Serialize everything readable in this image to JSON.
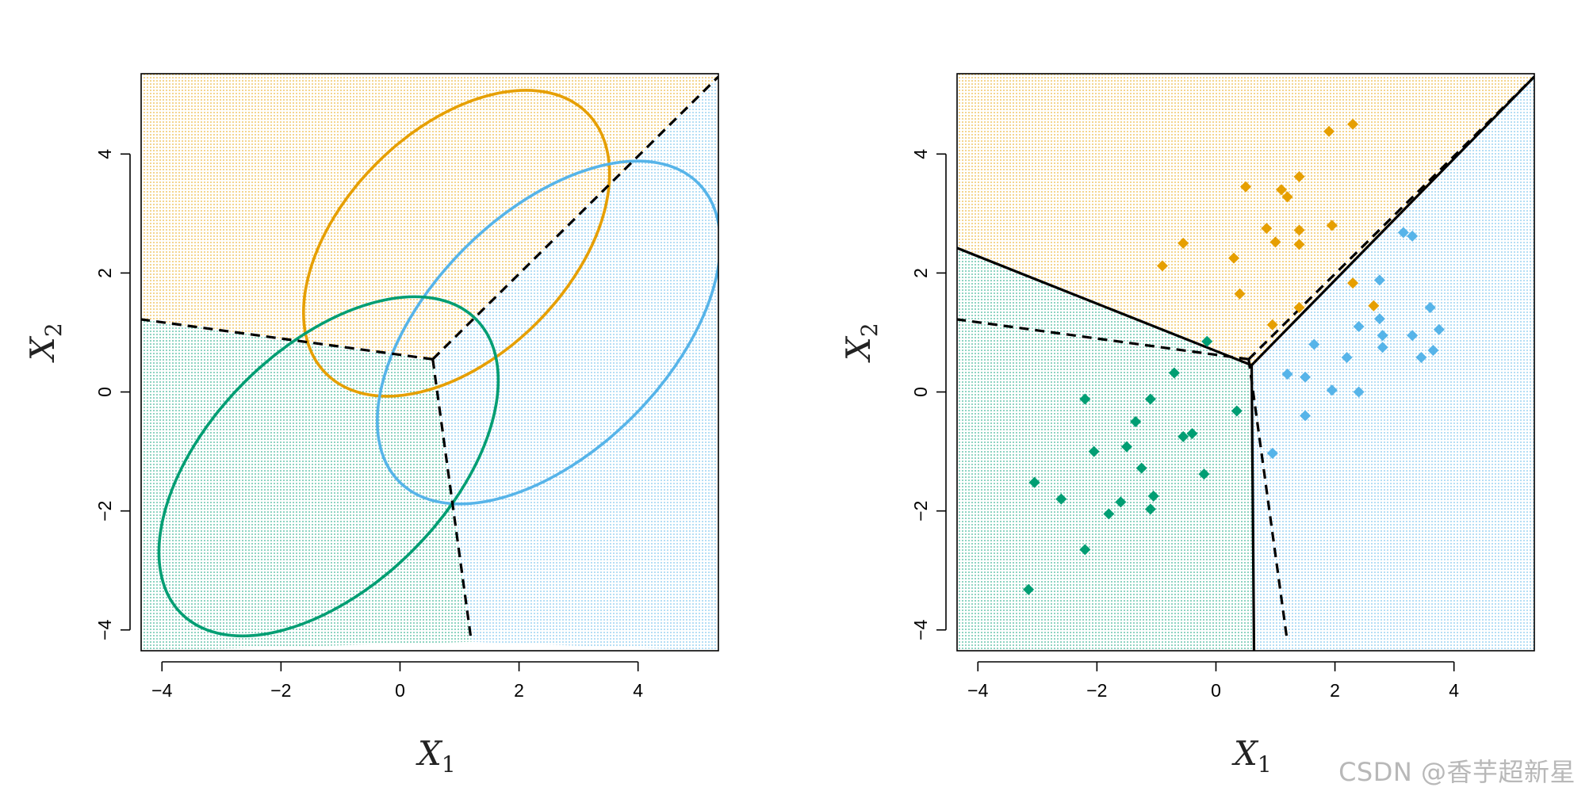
{
  "chart_data": [
    {
      "type": "scatter",
      "panel": "left",
      "title": "",
      "xlabel": "X1",
      "ylabel": "X2",
      "xlim": [
        -4.35,
        5.35
      ],
      "ylim": [
        -4.35,
        5.35
      ],
      "xticks": [
        -4,
        -2,
        0,
        2,
        4
      ],
      "yticks": [
        -4,
        -2,
        0,
        2,
        4
      ],
      "grid": false,
      "regions": [
        "orange",
        "blue",
        "green"
      ],
      "ellipses": [
        {
          "color": "orange",
          "center": [
            0.95,
            2.5
          ],
          "semi_axes": [
            3.1,
            1.9
          ],
          "angle_deg": 45
        },
        {
          "color": "blue",
          "center": [
            2.5,
            1.0
          ],
          "semi_axes": [
            3.55,
            2.0
          ],
          "angle_deg": 45
        },
        {
          "color": "green",
          "center": [
            -1.2,
            -1.25
          ],
          "semi_axes": [
            3.5,
            2.0
          ],
          "angle_deg": 45
        }
      ],
      "boundaries": [
        {
          "style": "dashed",
          "points": [
            [
              0.55,
              0.55
            ],
            [
              -4.35,
              1.22
            ]
          ]
        },
        {
          "style": "dashed",
          "points": [
            [
              0.55,
              0.55
            ],
            [
              5.35,
              5.3
            ]
          ]
        },
        {
          "style": "dashed",
          "points": [
            [
              0.55,
              0.55
            ],
            [
              1.2,
              -4.2
            ]
          ]
        }
      ]
    },
    {
      "type": "scatter",
      "panel": "right",
      "title": "",
      "xlabel": "X1",
      "ylabel": "X2",
      "xlim": [
        -4.35,
        5.35
      ],
      "ylim": [
        -4.35,
        5.35
      ],
      "xticks": [
        -4,
        -2,
        0,
        2,
        4
      ],
      "yticks": [
        -4,
        -2,
        0,
        2,
        4
      ],
      "grid": false,
      "regions": [
        "orange",
        "blue",
        "green"
      ],
      "boundaries": [
        {
          "style": "dashed",
          "points": [
            [
              0.55,
              0.55
            ],
            [
              -4.35,
              1.22
            ]
          ]
        },
        {
          "style": "dashed",
          "points": [
            [
              0.55,
              0.55
            ],
            [
              5.35,
              5.3
            ]
          ]
        },
        {
          "style": "dashed",
          "points": [
            [
              0.55,
              0.55
            ],
            [
              1.2,
              -4.2
            ]
          ]
        },
        {
          "style": "solid",
          "points": [
            [
              0.6,
              0.45
            ],
            [
              -4.35,
              2.42
            ]
          ]
        },
        {
          "style": "solid",
          "points": [
            [
              0.6,
              0.45
            ],
            [
              5.35,
              5.3
            ]
          ]
        },
        {
          "style": "solid",
          "points": [
            [
              0.6,
              0.45
            ],
            [
              0.64,
              -4.35
            ]
          ]
        }
      ],
      "series": [
        {
          "color": "orange",
          "points": [
            [
              1.9,
              4.38
            ],
            [
              2.3,
              4.5
            ],
            [
              0.5,
              3.45
            ],
            [
              1.1,
              3.4
            ],
            [
              1.2,
              3.28
            ],
            [
              1.4,
              3.62
            ],
            [
              0.85,
              2.75
            ],
            [
              1.4,
              2.72
            ],
            [
              1.95,
              2.8
            ],
            [
              1.0,
              2.52
            ],
            [
              1.4,
              2.48
            ],
            [
              -0.55,
              2.5
            ],
            [
              0.3,
              2.25
            ],
            [
              -0.9,
              2.12
            ],
            [
              2.3,
              1.83
            ],
            [
              0.4,
              1.65
            ],
            [
              1.4,
              1.42
            ],
            [
              2.65,
              1.45
            ],
            [
              0.95,
              1.13
            ]
          ]
        },
        {
          "color": "blue",
          "points": [
            [
              3.15,
              2.68
            ],
            [
              3.3,
              2.62
            ],
            [
              2.75,
              1.88
            ],
            [
              2.75,
              1.23
            ],
            [
              3.6,
              1.42
            ],
            [
              2.4,
              1.1
            ],
            [
              2.8,
              0.95
            ],
            [
              3.3,
              0.95
            ],
            [
              3.75,
              1.05
            ],
            [
              1.65,
              0.8
            ],
            [
              2.8,
              0.75
            ],
            [
              2.2,
              0.58
            ],
            [
              3.65,
              0.7
            ],
            [
              3.45,
              0.58
            ],
            [
              1.2,
              0.3
            ],
            [
              1.5,
              0.25
            ],
            [
              1.95,
              0.03
            ],
            [
              2.4,
              0.0
            ],
            [
              1.5,
              -0.4
            ],
            [
              0.95,
              -1.03
            ]
          ]
        },
        {
          "color": "green",
          "points": [
            [
              -0.15,
              0.85
            ],
            [
              -0.7,
              0.32
            ],
            [
              -2.2,
              -0.12
            ],
            [
              -1.1,
              -0.12
            ],
            [
              0.35,
              -0.32
            ],
            [
              -1.35,
              -0.5
            ],
            [
              -0.55,
              -0.75
            ],
            [
              -0.4,
              -0.7
            ],
            [
              -1.5,
              -0.92
            ],
            [
              -2.05,
              -1.0
            ],
            [
              -1.25,
              -1.28
            ],
            [
              -0.2,
              -1.38
            ],
            [
              -3.05,
              -1.52
            ],
            [
              -2.6,
              -1.8
            ],
            [
              -1.05,
              -1.75
            ],
            [
              -1.6,
              -1.85
            ],
            [
              -1.1,
              -1.97
            ],
            [
              -1.8,
              -2.05
            ],
            [
              -2.2,
              -2.65
            ],
            [
              -3.15,
              -3.32
            ]
          ]
        }
      ]
    }
  ],
  "colors": {
    "orange": "#E69F00",
    "blue": "#56B4E9",
    "green": "#009E73",
    "boundary": "#000000",
    "axis": "#000000"
  },
  "axis_titles": {
    "x_main": "X",
    "x_sub": "1",
    "y_main": "X",
    "y_sub": "2"
  },
  "tick_labels": [
    "−4",
    "−2",
    "0",
    "2",
    "4"
  ],
  "watermark": "CSDN @香芋超新星"
}
